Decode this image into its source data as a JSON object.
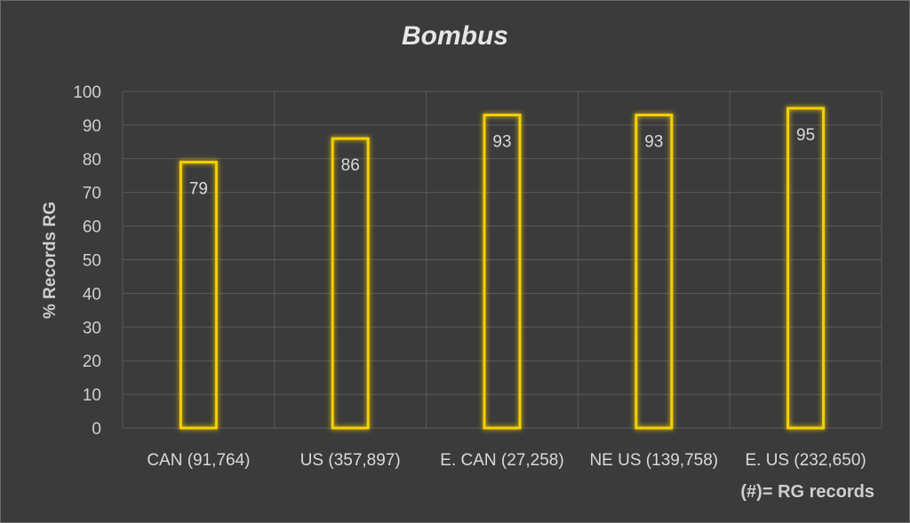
{
  "chart_data": {
    "type": "bar",
    "title": "Bombus",
    "ylabel": "% Records RG",
    "xlabel": "",
    "categories": [
      "CAN (91,764)",
      "US (357,897)",
      "E. CAN (27,258)",
      "NE US (139,758)",
      "E. US (232,650)"
    ],
    "values": [
      79,
      86,
      93,
      93,
      95
    ],
    "ylim": [
      0,
      100
    ],
    "yticks": [
      0,
      10,
      20,
      30,
      40,
      50,
      60,
      70,
      80,
      90,
      100
    ],
    "grid": true,
    "legend": "none",
    "bar_color": "#f5d000",
    "footnote": "(#)= RG records"
  }
}
